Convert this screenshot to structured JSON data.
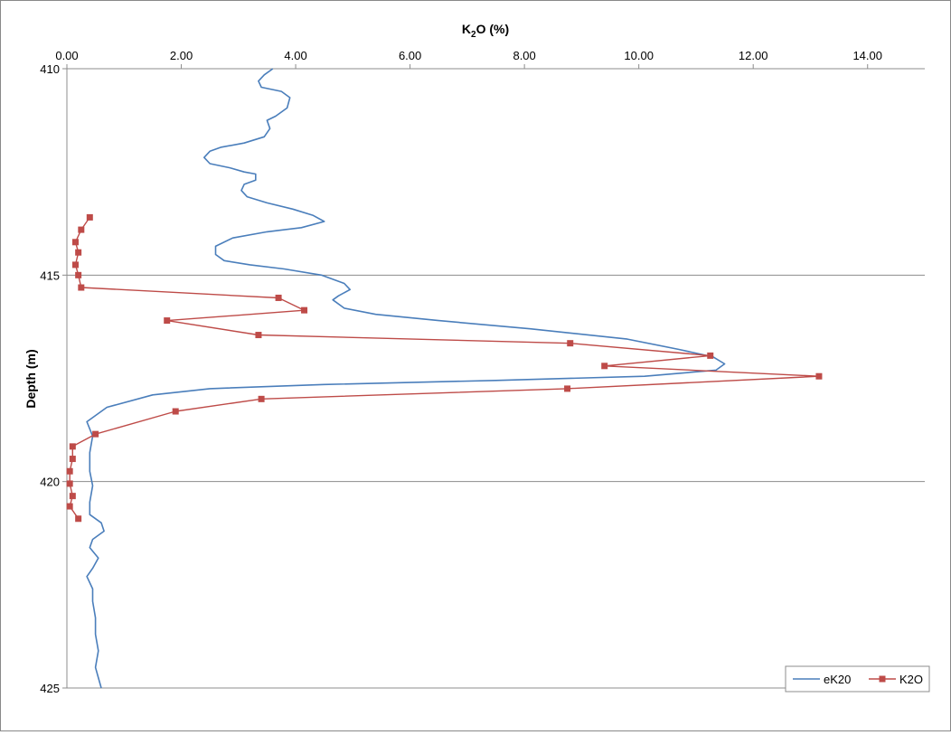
{
  "chart_data": {
    "type": "line",
    "title": "K2O (%)",
    "title_main": "K",
    "title_sub": "2",
    "title_tail": "O (%)",
    "xlabel": "",
    "ylabel": "Depth (m)",
    "xlim": [
      0,
      15
    ],
    "ylim": [
      410,
      425
    ],
    "y_inverted": true,
    "x_axis_position": "top",
    "x_ticks": [
      0,
      2,
      4,
      6,
      8,
      10,
      12,
      14
    ],
    "x_tick_labels": [
      "0.00",
      "2.00",
      "4.00",
      "6.00",
      "8.00",
      "10.00",
      "12.00",
      "14.00"
    ],
    "y_ticks": [
      410,
      415,
      420,
      425
    ],
    "y_tick_labels": [
      "410",
      "415",
      "420",
      "425"
    ],
    "grid": "horizontal major lines",
    "legend_placement": "bottom-right",
    "series": [
      {
        "name": "eK20",
        "color": "#4a7ebb",
        "marker": "none",
        "points": [
          [
            3.6,
            410.0
          ],
          [
            3.45,
            410.15
          ],
          [
            3.35,
            410.3
          ],
          [
            3.4,
            410.45
          ],
          [
            3.75,
            410.55
          ],
          [
            3.9,
            410.7
          ],
          [
            3.85,
            410.95
          ],
          [
            3.65,
            411.15
          ],
          [
            3.5,
            411.25
          ],
          [
            3.55,
            411.45
          ],
          [
            3.45,
            411.65
          ],
          [
            3.1,
            411.8
          ],
          [
            2.7,
            411.9
          ],
          [
            2.5,
            412.0
          ],
          [
            2.4,
            412.15
          ],
          [
            2.5,
            412.3
          ],
          [
            2.85,
            412.4
          ],
          [
            3.1,
            412.5
          ],
          [
            3.3,
            412.55
          ],
          [
            3.3,
            412.7
          ],
          [
            3.1,
            412.8
          ],
          [
            3.05,
            412.95
          ],
          [
            3.15,
            413.1
          ],
          [
            3.5,
            413.25
          ],
          [
            3.95,
            413.4
          ],
          [
            4.3,
            413.55
          ],
          [
            4.5,
            413.7
          ],
          [
            4.1,
            413.85
          ],
          [
            3.5,
            413.95
          ],
          [
            2.9,
            414.1
          ],
          [
            2.6,
            414.3
          ],
          [
            2.6,
            414.5
          ],
          [
            2.75,
            414.65
          ],
          [
            3.2,
            414.75
          ],
          [
            3.8,
            414.85
          ],
          [
            4.45,
            415.0
          ],
          [
            4.85,
            415.2
          ],
          [
            4.95,
            415.35
          ],
          [
            4.75,
            415.5
          ],
          [
            4.65,
            415.6
          ],
          [
            4.85,
            415.8
          ],
          [
            5.4,
            415.95
          ],
          [
            6.5,
            416.1
          ],
          [
            8.1,
            416.3
          ],
          [
            9.8,
            416.55
          ],
          [
            10.7,
            416.8
          ],
          [
            11.3,
            416.98
          ],
          [
            11.5,
            417.15
          ],
          [
            11.35,
            417.3
          ],
          [
            10.1,
            417.45
          ],
          [
            7.5,
            417.55
          ],
          [
            4.5,
            417.65
          ],
          [
            2.5,
            417.75
          ],
          [
            1.5,
            417.9
          ],
          [
            0.7,
            418.2
          ],
          [
            0.35,
            418.55
          ],
          [
            0.45,
            418.9
          ],
          [
            0.4,
            419.3
          ],
          [
            0.4,
            419.75
          ],
          [
            0.45,
            420.1
          ],
          [
            0.4,
            420.5
          ],
          [
            0.4,
            420.8
          ],
          [
            0.6,
            421.0
          ],
          [
            0.65,
            421.2
          ],
          [
            0.45,
            421.4
          ],
          [
            0.4,
            421.6
          ],
          [
            0.55,
            421.85
          ],
          [
            0.45,
            422.1
          ],
          [
            0.35,
            422.3
          ],
          [
            0.45,
            422.6
          ],
          [
            0.45,
            422.9
          ],
          [
            0.5,
            423.3
          ],
          [
            0.5,
            423.7
          ],
          [
            0.55,
            424.1
          ],
          [
            0.5,
            424.5
          ],
          [
            0.55,
            424.75
          ],
          [
            0.6,
            425.0
          ]
        ]
      },
      {
        "name": "K2O",
        "color": "#be4b48",
        "marker": "square",
        "points": [
          [
            0.4,
            413.6
          ],
          [
            0.25,
            413.9
          ],
          [
            0.15,
            414.2
          ],
          [
            0.2,
            414.45
          ],
          [
            0.15,
            414.75
          ],
          [
            0.2,
            415.0
          ],
          [
            0.25,
            415.3
          ],
          [
            3.7,
            415.55
          ],
          [
            4.15,
            415.85
          ],
          [
            1.75,
            416.1
          ],
          [
            3.35,
            416.45
          ],
          [
            8.8,
            416.65
          ],
          [
            11.25,
            416.95
          ],
          [
            9.4,
            417.2
          ],
          [
            13.15,
            417.45
          ],
          [
            8.75,
            417.75
          ],
          [
            3.4,
            418.0
          ],
          [
            1.9,
            418.3
          ],
          [
            0.5,
            418.85
          ],
          [
            0.1,
            419.15
          ],
          [
            0.1,
            419.45
          ],
          [
            0.05,
            419.75
          ],
          [
            0.05,
            420.05
          ],
          [
            0.1,
            420.35
          ],
          [
            0.05,
            420.6
          ],
          [
            0.2,
            420.9
          ]
        ]
      }
    ]
  }
}
